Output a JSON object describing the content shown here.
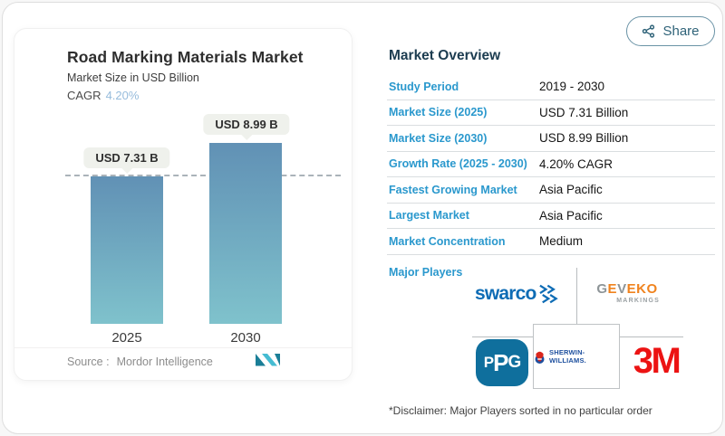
{
  "share": {
    "label": "Share"
  },
  "chart": {
    "title": "Road Marking Materials Market",
    "subtitle": "Market Size in USD Billion",
    "cagr_label": "CAGR",
    "cagr_value": "4.20%",
    "source_label": "Source :",
    "source_brand": "Mordor Intelligence"
  },
  "chart_data": {
    "type": "bar",
    "title": "Road Marking Materials Market",
    "subtitle": "Market Size in USD Billion",
    "unit": "USD Billion",
    "categories": [
      "2025",
      "2030"
    ],
    "values": [
      7.31,
      8.99
    ],
    "value_labels": [
      "USD 7.31 B",
      "USD 8.99 B"
    ],
    "ylim": [
      0,
      9.0
    ],
    "reference_line_at": 7.31,
    "bar_color_top": "#6191b5",
    "bar_color_bottom": "#7fc2cc",
    "grid": "off",
    "legend": "none"
  },
  "overview": {
    "title": "Market Overview",
    "rows": [
      {
        "label": "Study Period",
        "value": "2019 - 2030"
      },
      {
        "label": "Market Size (2025)",
        "value": "USD 7.31 Billion"
      },
      {
        "label": "Market Size (2030)",
        "value": "USD 8.99 Billion"
      },
      {
        "label": "Growth Rate (2025 - 2030)",
        "value": "4.20% CAGR"
      },
      {
        "label": "Fastest Growing Market",
        "value": "Asia Pacific"
      },
      {
        "label": "Largest Market",
        "value": "Asia Pacific"
      },
      {
        "label": "Market Concentration",
        "value": "Medium"
      }
    ],
    "major_players_label": "Major Players",
    "major_players": [
      "SWARCO",
      "Geveko Markings",
      "PPG",
      "Sherwin-Williams",
      "3M"
    ],
    "players": {
      "swarco": {
        "text": "swarco"
      },
      "geveko": {
        "letters": [
          "G",
          "E",
          "V",
          "E",
          "K",
          "O"
        ],
        "line2": "MARKINGS"
      },
      "ppg": {
        "letters": [
          "P",
          "P",
          "G"
        ]
      },
      "sherwin": {
        "text": "SHERWIN-WILLIAMS."
      },
      "mmm": {
        "text": "3M"
      }
    },
    "disclaimer": "*Disclaimer: Major Players sorted in no particular order"
  }
}
